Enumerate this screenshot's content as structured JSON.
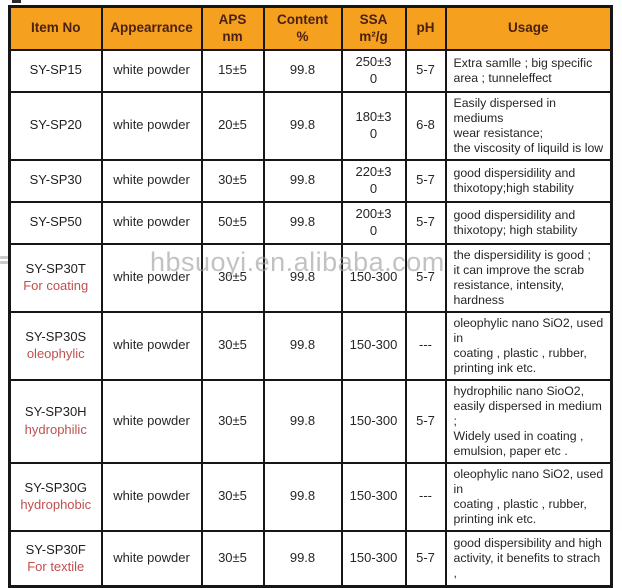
{
  "colors": {
    "header_bg": "#F5A01E",
    "header_text": "#4A2113",
    "subtitle_red": "#C0504D",
    "border": "#161616",
    "watermark": "#9E9E9E"
  },
  "watermark": {
    "text": "hbsuoyi.en.alibaba.com"
  },
  "table": {
    "columns": [
      {
        "label": "Item No"
      },
      {
        "label": "Appearrance"
      },
      {
        "label": "APS\nnm"
      },
      {
        "label": "Content\n%"
      },
      {
        "label": "SSA\nm²/g"
      },
      {
        "label": "pH"
      },
      {
        "label": "Usage"
      }
    ],
    "rows": [
      {
        "item": "SY-SP15",
        "item_sub": "",
        "appearance": "white powder",
        "aps": "15±5",
        "content": "99.8",
        "ssa": "250±3\n0",
        "ph": "5-7",
        "usage": "Extra samlle ; big specific\narea ; tunneleffect"
      },
      {
        "item": "SY-SP20",
        "item_sub": "",
        "appearance": "white powder",
        "aps": "20±5",
        "content": "99.8",
        "ssa": "180±3\n0",
        "ph": "6-8",
        "usage": "Easily dispersed in mediums\n wear resistance;\nthe viscosity of liquild is low"
      },
      {
        "item": "SY-SP30",
        "item_sub": "",
        "appearance": "white powder",
        "aps": "30±5",
        "content": "99.8",
        "ssa": "220±3\n0",
        "ph": "5-7",
        "usage": "good dispersidility and\nthixotopy;high stability"
      },
      {
        "item": "SY-SP50",
        "item_sub": "",
        "appearance": "white powder",
        "aps": "50±5",
        "content": "99.8",
        "ssa": "200±3\n0",
        "ph": "5-7",
        "usage": "good dispersidility and\nthixotopy;  high stability"
      },
      {
        "item": "SY-SP30T",
        "item_sub": "For coating",
        "appearance": "white powder",
        "aps": "30±5",
        "content": "99.8",
        "ssa": "150-300",
        "ph": "5-7",
        "usage": "the dispersidility is good ;\nit can improve the scrab\nresistance, intensity,\nhardness"
      },
      {
        "item": "SY-SP30S",
        "item_sub": "oleophylic",
        "appearance": "white powder",
        "aps": "30±5",
        "content": "99.8",
        "ssa": "150-300",
        "ph": "---",
        "usage": "oleophylic nano SiO2, used in\ncoating , plastic , rubber,\nprinting ink etc."
      },
      {
        "item": "SY-SP30H",
        "item_sub": "hydrophilic",
        "appearance": "white powder",
        "aps": "30±5",
        "content": "99.8",
        "ssa": "150-300",
        "ph": "5-7",
        "usage": "hydrophilic nano SioO2,\neasily dispersed in medium ;\nWidely used in coating ,\nemulsion, paper etc ."
      },
      {
        "item": "SY-SP30G",
        "item_sub": "hydrophobic",
        "appearance": "white powder",
        "aps": "30±5",
        "content": "99.8",
        "ssa": "150-300",
        "ph": "---",
        "usage": "oleophylic nano SiO2, used in\ncoating , plastic , rubber,\nprinting ink etc."
      },
      {
        "item": "SY-SP30F",
        "item_sub": "For textile",
        "appearance": "white powder",
        "aps": "30±5",
        "content": "99.8",
        "ssa": "150-300",
        "ph": "5-7",
        "usage": "good dispersibility and high\nactivity, it benefits to strach ,"
      }
    ]
  }
}
